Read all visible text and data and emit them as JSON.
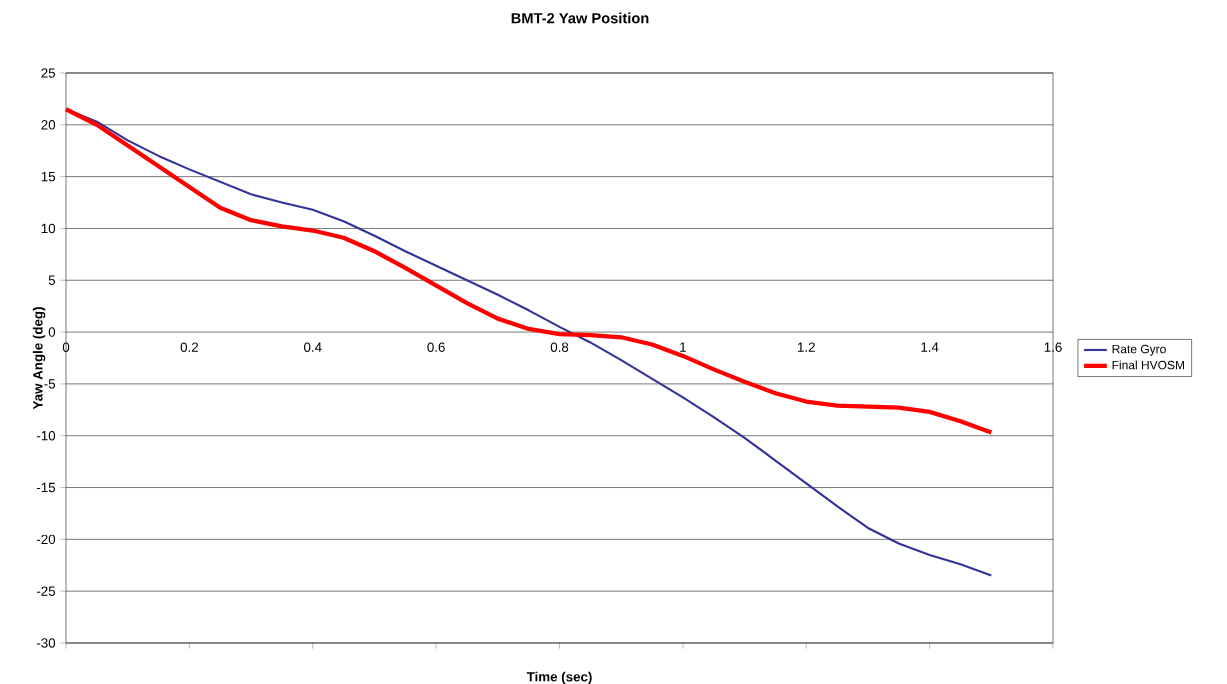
{
  "chart_data": {
    "type": "line",
    "title": "BMT-2 Yaw Position",
    "xlabel": "Time (sec)",
    "ylabel": "Yaw Angle (deg)",
    "x": [
      0,
      0.05,
      0.1,
      0.15,
      0.2,
      0.25,
      0.3,
      0.35,
      0.4,
      0.45,
      0.5,
      0.55,
      0.6,
      0.65,
      0.7,
      0.75,
      0.8,
      0.85,
      0.9,
      0.95,
      1.0,
      1.05,
      1.1,
      1.15,
      1.2,
      1.25,
      1.3,
      1.35,
      1.4,
      1.45,
      1.5
    ],
    "series": [
      {
        "name": "Rate Gyro",
        "color": "#333399",
        "values": [
          21.5,
          20.3,
          18.5,
          17,
          15.7,
          14.5,
          13.3,
          12.5,
          11.8,
          10.7,
          9.3,
          7.8,
          6.4,
          5,
          3.6,
          2.1,
          0.5,
          -1,
          -2.7,
          -4.5,
          -6.3,
          -8.2,
          -10.2,
          -12.4,
          -14.6,
          -16.8,
          -18.9,
          -20.4,
          -21.5,
          -22.4,
          -23.5
        ]
      },
      {
        "name": "Final HVOSM",
        "color": "#ff0000",
        "values": [
          21.5,
          20,
          18,
          16,
          14,
          12,
          10.8,
          10.2,
          9.8,
          9.1,
          7.8,
          6.2,
          4.5,
          2.8,
          1.3,
          0.3,
          -0.2,
          -0.3,
          -0.5,
          -1.2,
          -2.3,
          -3.6,
          -4.8,
          -5.9,
          -6.7,
          -7.1,
          -7.2,
          -7.3,
          -7.7,
          -8.6,
          -9.7
        ]
      }
    ],
    "xlim": [
      0,
      1.6
    ],
    "xticks": [
      0,
      0.2,
      0.4,
      0.6,
      0.8,
      1,
      1.2,
      1.4,
      1.6
    ],
    "ylim": [
      -30,
      25
    ],
    "yticks": [
      -30,
      -25,
      -20,
      -15,
      -10,
      -5,
      0,
      5,
      10,
      15,
      20,
      25
    ],
    "grid": "y",
    "legend": "right",
    "marker": "none",
    "line_style": "solid"
  }
}
